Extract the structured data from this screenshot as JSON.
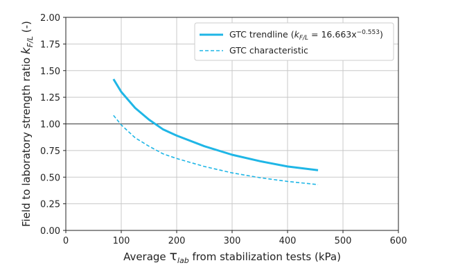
{
  "chart_data": {
    "type": "line",
    "title": "",
    "xlabel": {
      "pre": "Average ",
      "symbol": "τ",
      "sub": "lab",
      "post": " from stabilization tests (kPa)"
    },
    "ylabel": {
      "pre": "Field to laboratory strength ratio ",
      "symbol": "k",
      "sub": "F/L",
      "post": " (-)"
    },
    "xlim": [
      0,
      600
    ],
    "ylim": [
      0,
      2.0
    ],
    "x_ticks": [
      0,
      100,
      200,
      300,
      400,
      500,
      600
    ],
    "y_ticks": [
      0.0,
      0.25,
      0.5,
      0.75,
      1.0,
      1.25,
      1.5,
      1.75,
      2.0
    ],
    "x_tick_labels": [
      "0",
      "100",
      "200",
      "300",
      "400",
      "500",
      "600"
    ],
    "y_tick_labels": [
      "0.00",
      "0.25",
      "0.50",
      "0.75",
      "1.00",
      "1.25",
      "1.50",
      "1.75",
      "2.00"
    ],
    "grid": true,
    "reference_line": {
      "y": 1.0,
      "color": "#555555"
    },
    "legend_position": "top-right",
    "series": [
      {
        "name": "GTC trendline",
        "legend": {
          "pre": "GTC trendline (",
          "k": "k",
          "sub": "F/L",
          "mid": " = 16.663x",
          "sup": "−0.553",
          "post": ")"
        },
        "style": "solid",
        "color": "#1fb6e6",
        "x": [
          86,
          100,
          125,
          150,
          175,
          200,
          250,
          300,
          350,
          400,
          455
        ],
        "y": [
          1.42,
          1.3,
          1.15,
          1.04,
          0.95,
          0.89,
          0.79,
          0.71,
          0.65,
          0.6,
          0.565
        ]
      },
      {
        "name": "GTC characteristic",
        "legend": {
          "pre": "GTC characteristic"
        },
        "style": "dashed",
        "color": "#1fb6e6",
        "x": [
          86,
          100,
          125,
          150,
          175,
          200,
          250,
          300,
          350,
          400,
          455
        ],
        "y": [
          1.08,
          0.99,
          0.87,
          0.79,
          0.72,
          0.675,
          0.6,
          0.54,
          0.495,
          0.46,
          0.43
        ]
      }
    ]
  }
}
